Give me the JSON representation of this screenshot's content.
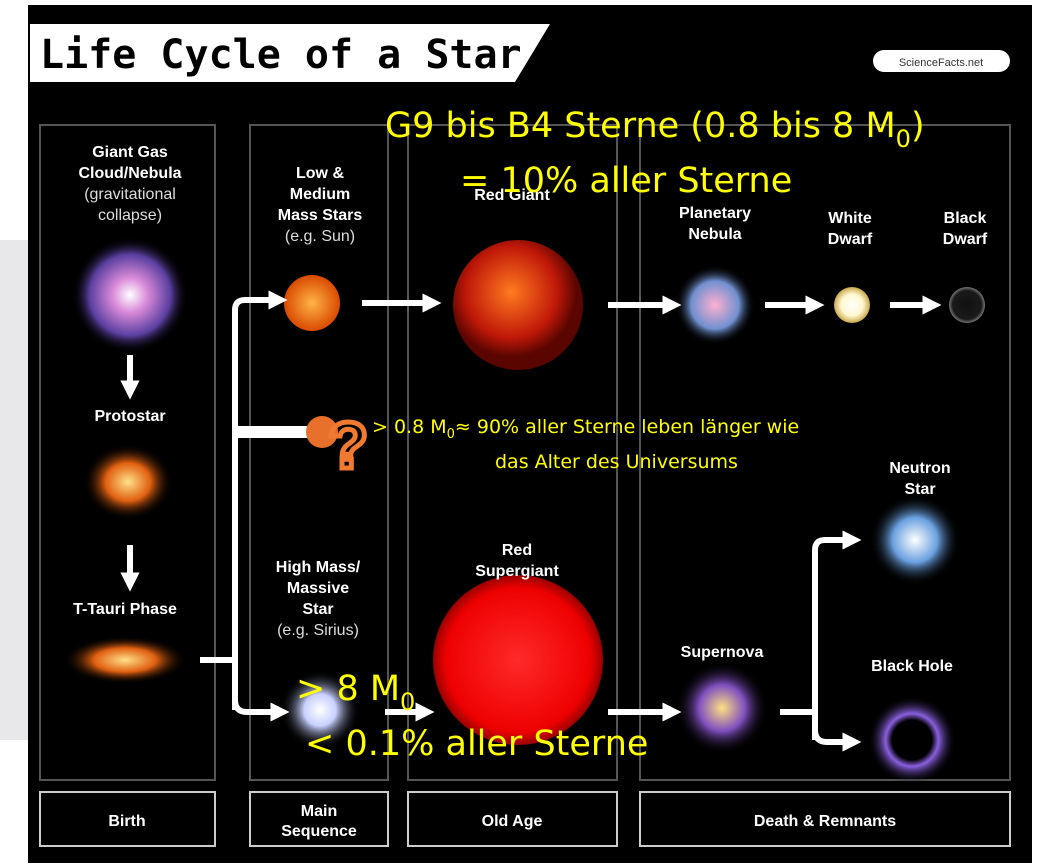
{
  "header": {
    "title": "Life Cycle of a Star",
    "logo": "ScienceFacts.net"
  },
  "stages": [
    {
      "lines": [
        "Giant Gas",
        "Cloud/Nebula"
      ],
      "note": [
        "(gravitational",
        "collapse)"
      ]
    },
    {
      "lines": [
        "Protostar"
      ]
    },
    {
      "lines": [
        "T-Tauri Phase"
      ]
    },
    {
      "lines": [
        "Low &",
        "Medium",
        "Mass Stars"
      ],
      "note": [
        "(e.g. Sun)"
      ]
    },
    {
      "lines": [
        "Red Giant"
      ]
    },
    {
      "lines": [
        "Planetary",
        "Nebula"
      ]
    },
    {
      "lines": [
        "White",
        "Dwarf"
      ]
    },
    {
      "lines": [
        "Black",
        "Dwarf"
      ]
    },
    {
      "lines": [
        "High Mass/",
        "Massive",
        "Star"
      ],
      "note": [
        "(e.g. Sirius)"
      ]
    },
    {
      "lines": [
        "Red",
        "Supergiant"
      ]
    },
    {
      "lines": [
        "Supernova"
      ]
    },
    {
      "lines": [
        "Neutron",
        "Star"
      ]
    },
    {
      "lines": [
        "Black Hole"
      ]
    }
  ],
  "footer": [
    [
      "Birth"
    ],
    [
      "Main",
      "Sequence"
    ],
    [
      "Old Age"
    ],
    [
      "Death & Remnants"
    ]
  ],
  "annotations": {
    "g9_line": [
      "G9 bis B4 Sterne (0.8 bis 8 M",
      "0",
      ")"
    ],
    "ten_percent": "= 10% aller Sterne",
    "low_mass": [
      "> 0.8 M",
      "0",
      "≈ 90% aller Sterne leben länger wie"
    ],
    "low_mass_2": "das Alter des Universums",
    "high_mass": [
      "> 8 M",
      "0"
    ],
    "high_mass_2": "< 0.1% aller Sterne",
    "question": "?"
  }
}
